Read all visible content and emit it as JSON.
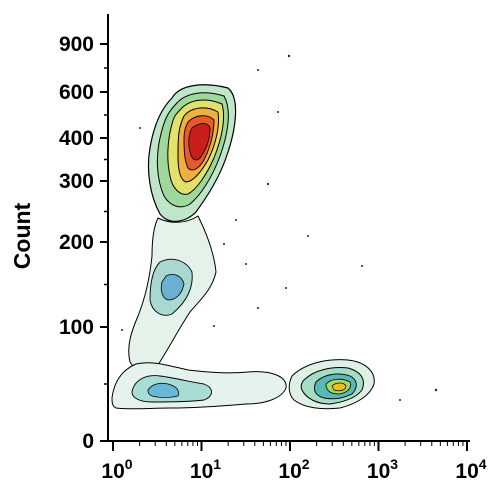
{
  "chart_data": {
    "type": "contour-density",
    "ylabel": "Count",
    "xlabel": "",
    "x_scale": "log",
    "y_scale": "nonlinear",
    "xlim": [
      1,
      10000
    ],
    "ylim": [
      0,
      1000
    ],
    "x_ticks": [
      {
        "value": 1,
        "base": "10",
        "exp": "0"
      },
      {
        "value": 10,
        "base": "10",
        "exp": "1"
      },
      {
        "value": 100,
        "base": "10",
        "exp": "2"
      },
      {
        "value": 1000,
        "base": "10",
        "exp": "3"
      },
      {
        "value": 10000,
        "base": "10",
        "exp": "4"
      }
    ],
    "y_ticks": [
      {
        "value": 0,
        "label": "0"
      },
      {
        "value": 100,
        "label": "100"
      },
      {
        "value": 200,
        "label": "200"
      },
      {
        "value": 300,
        "label": "300"
      },
      {
        "value": 400,
        "label": "400"
      },
      {
        "value": 600,
        "label": "600"
      },
      {
        "value": 900,
        "label": "900"
      }
    ],
    "populations": [
      {
        "x_center": 10,
        "y_center": 430,
        "x_min": 4,
        "x_max": 25,
        "y_min": 180,
        "y_max": 620,
        "peak_color": "#d42020"
      },
      {
        "x_center": 6,
        "y_center": 150,
        "x_min": 2,
        "x_max": 20,
        "y_min": 45,
        "y_max": 230,
        "peak_color": "#58a8d8"
      },
      {
        "x_center": 3,
        "y_center": 45,
        "x_min": 1.1,
        "x_max": 40,
        "y_min": 20,
        "y_max": 80,
        "peak_color": "#6ab8d8"
      },
      {
        "x_center": 350,
        "y_center": 50,
        "x_min": 100,
        "x_max": 900,
        "y_min": 25,
        "y_max": 80,
        "peak_color": "#e8c020"
      }
    ],
    "grid": false,
    "legend": "none"
  }
}
